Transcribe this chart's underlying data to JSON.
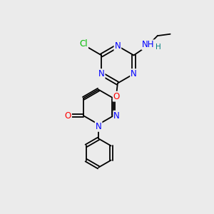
{
  "background_color": "#ebebeb",
  "bond_color": "#000000",
  "atom_colors": {
    "N": "#0000ff",
    "O": "#ff0000",
    "Cl": "#00bb00",
    "H": "#008080",
    "C": "#000000"
  },
  "font_size_atoms": 8.5,
  "font_size_small": 7.5,
  "lw": 1.3
}
